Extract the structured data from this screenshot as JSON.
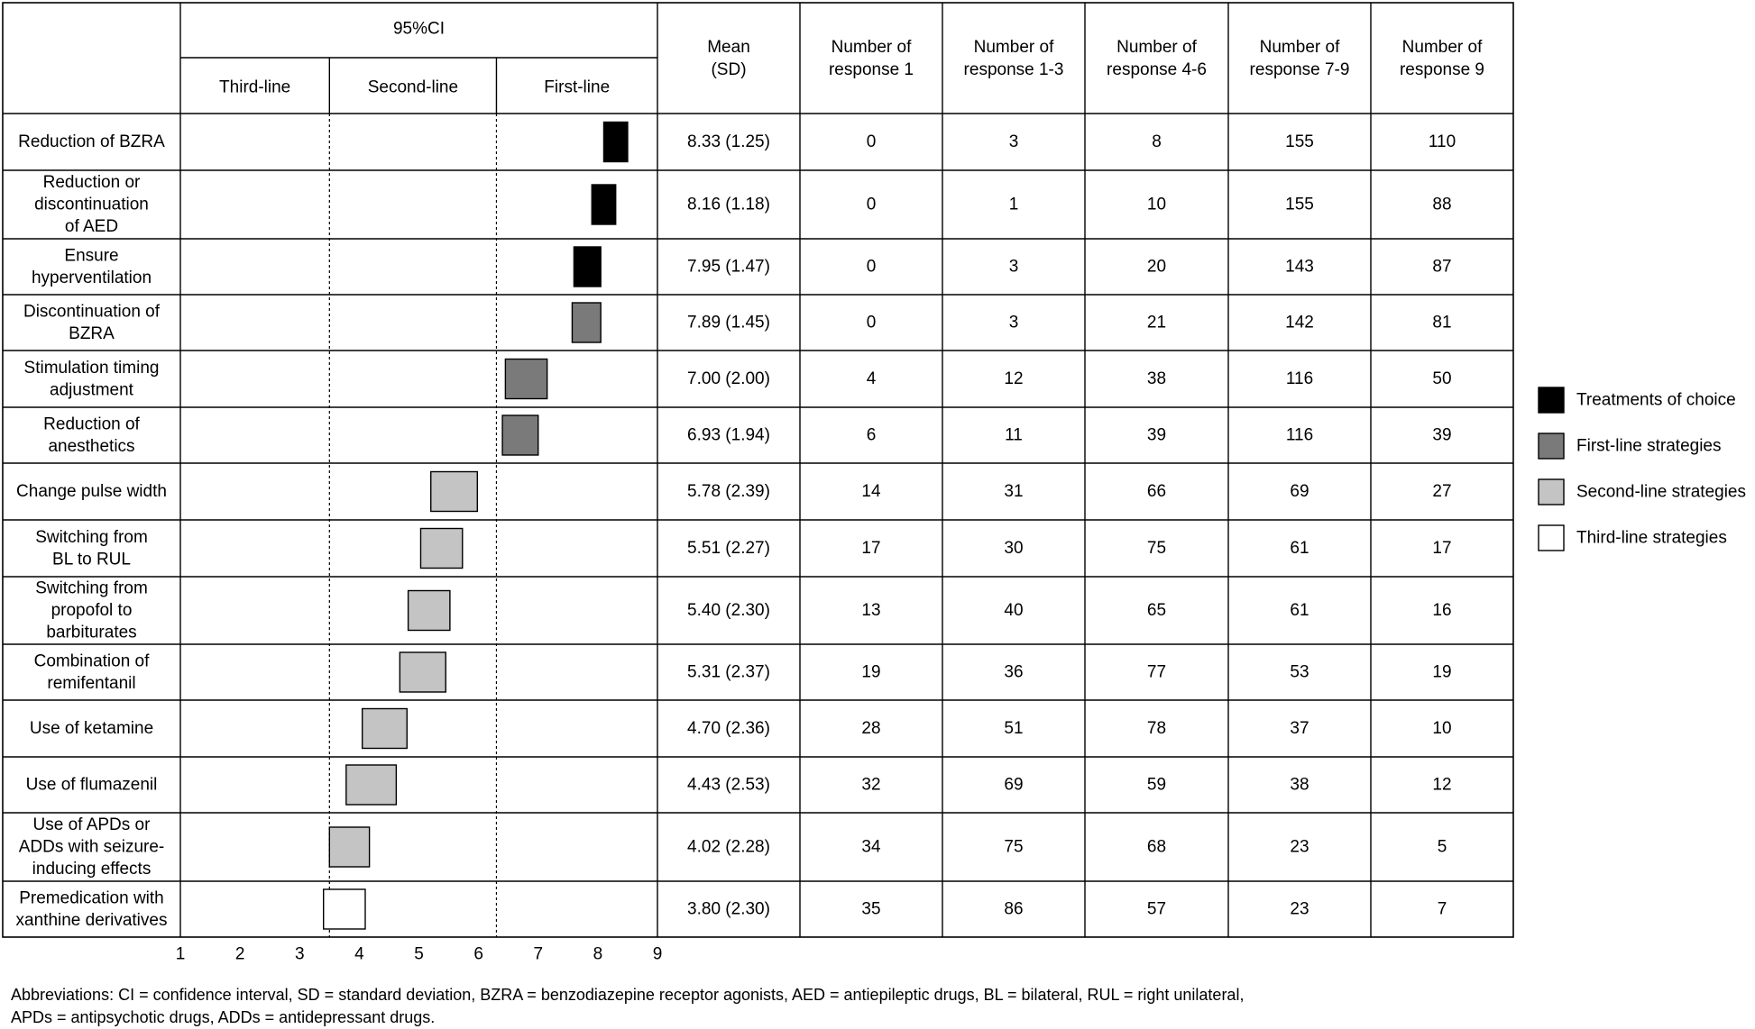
{
  "chart_data": {
    "type": "table",
    "header": {
      "ci_group": "95%CI",
      "ci_subheaders": [
        "Third-line",
        "Second-line",
        "First-line"
      ],
      "columns": [
        "Mean\n(SD)",
        "Number of\nresponse 1",
        "Number of\nresponse 1-3",
        "Number of\nresponse 4-6",
        "Number of\nresponse 7-9",
        "Number of\nresponse 9"
      ]
    },
    "axis_ticks": [
      "1",
      "2",
      "3",
      "4",
      "5",
      "6",
      "7",
      "8",
      "9"
    ],
    "xlim": [
      1,
      9
    ],
    "thresholds": [
      3.5,
      6.3
    ],
    "rows": [
      {
        "label": "Reduction of BZRA",
        "ci": [
          8.1,
          8.5
        ],
        "category": "choice",
        "mean_sd": "8.33 (1.25)",
        "n1": "0",
        "n13": "3",
        "n46": "8",
        "n79": "155",
        "n9": "110"
      },
      {
        "label": "Reduction or\ndiscontinuation\nof AED",
        "ci": [
          7.9,
          8.3
        ],
        "category": "choice",
        "mean_sd": "8.16 (1.18)",
        "n1": "0",
        "n13": "1",
        "n46": "10",
        "n79": "155",
        "n9": "88"
      },
      {
        "label": "Ensure\nhyperventilation",
        "ci": [
          7.6,
          8.05
        ],
        "category": "choice",
        "mean_sd": "7.95 (1.47)",
        "n1": "0",
        "n13": "3",
        "n46": "20",
        "n79": "143",
        "n9": "87"
      },
      {
        "label": "Discontinuation of\nBZRA",
        "ci": [
          7.57,
          8.05
        ],
        "category": "first",
        "mean_sd": "7.89 (1.45)",
        "n1": "0",
        "n13": "3",
        "n46": "21",
        "n79": "142",
        "n9": "81"
      },
      {
        "label": "Stimulation timing\nadjustment",
        "ci": [
          6.45,
          7.15
        ],
        "category": "first",
        "mean_sd": "7.00 (2.00)",
        "n1": "4",
        "n13": "12",
        "n46": "38",
        "n79": "116",
        "n9": "50"
      },
      {
        "label": "Reduction of\nanesthetics",
        "ci": [
          6.4,
          7.0
        ],
        "category": "first",
        "mean_sd": "6.93 (1.94)",
        "n1": "6",
        "n13": "11",
        "n46": "39",
        "n79": "116",
        "n9": "39"
      },
      {
        "label": "Change pulse width",
        "ci": [
          5.2,
          5.98
        ],
        "category": "second",
        "mean_sd": "5.78 (2.39)",
        "n1": "14",
        "n13": "31",
        "n46": "66",
        "n79": "69",
        "n9": "27"
      },
      {
        "label": "Switching from\nBL to RUL",
        "ci": [
          5.03,
          5.73
        ],
        "category": "second",
        "mean_sd": "5.51 (2.27)",
        "n1": "17",
        "n13": "30",
        "n46": "75",
        "n79": "61",
        "n9": "17"
      },
      {
        "label": "Switching from\npropofol to\nbarbiturates",
        "ci": [
          4.82,
          5.52
        ],
        "category": "second",
        "mean_sd": "5.40 (2.30)",
        "n1": "13",
        "n13": "40",
        "n46": "65",
        "n79": "61",
        "n9": "16"
      },
      {
        "label": "Combination of\nremifentanil",
        "ci": [
          4.68,
          5.45
        ],
        "category": "second",
        "mean_sd": "5.31 (2.37)",
        "n1": "19",
        "n13": "36",
        "n46": "77",
        "n79": "53",
        "n9": "19"
      },
      {
        "label": "Use of ketamine",
        "ci": [
          4.05,
          4.8
        ],
        "category": "second",
        "mean_sd": "4.70 (2.36)",
        "n1": "28",
        "n13": "51",
        "n46": "78",
        "n79": "37",
        "n9": "10"
      },
      {
        "label": "Use of flumazenil",
        "ci": [
          3.78,
          4.62
        ],
        "category": "second",
        "mean_sd": "4.43 (2.53)",
        "n1": "32",
        "n13": "69",
        "n46": "59",
        "n79": "38",
        "n9": "12"
      },
      {
        "label": "Use of APDs or\nADDs with seizure-\ninducing effects",
        "ci": [
          3.5,
          4.17
        ],
        "category": "second",
        "mean_sd": "4.02 (2.28)",
        "n1": "34",
        "n13": "75",
        "n46": "68",
        "n79": "23",
        "n9": "5"
      },
      {
        "label": "Premedication with\nxanthine derivatives",
        "ci": [
          3.4,
          4.1
        ],
        "category": "third",
        "mean_sd": "3.80 (2.30)",
        "n1": "35",
        "n13": "86",
        "n46": "57",
        "n79": "23",
        "n9": "7"
      }
    ],
    "legend": [
      {
        "key": "choice",
        "label": "Treatments of choice",
        "color": "#000000"
      },
      {
        "key": "first",
        "label": "First-line strategies",
        "color": "#7a7a7a"
      },
      {
        "key": "second",
        "label": "Second-line strategies",
        "color": "#c4c4c4"
      },
      {
        "key": "third",
        "label": "Third-line strategies",
        "color": "#ffffff"
      }
    ],
    "legend_position": "right"
  },
  "abbreviations": "Abbreviations: CI = confidence interval, SD = standard deviation, BZRA = benzodiazepine receptor agonists, AED = antiepileptic drugs, BL = bilateral, RUL = right unilateral,\nAPDs = antipsychotic drugs, ADDs = antidepressant drugs."
}
